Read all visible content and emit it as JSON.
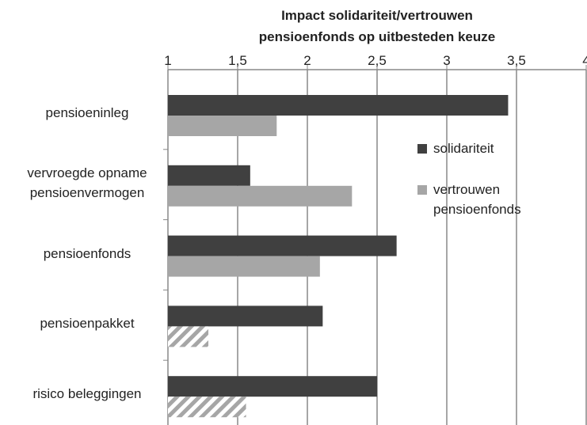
{
  "chart_data": {
    "type": "bar",
    "orientation": "horizontal",
    "title": "Impact solidariteit/vertrouwen\npensioenfonds  op uitbesteden keuze",
    "categories": [
      "pensioeninleg",
      "vervroegde opname\npensioenvermogen",
      "pensioenfonds",
      "pensioenpakket",
      "risico beleggingen"
    ],
    "series": [
      {
        "name": "solidariteit",
        "color": "#404040",
        "values": [
          3.44,
          1.59,
          2.64,
          2.11,
          2.5
        ]
      },
      {
        "name": "vertrouwen\npensioenfonds",
        "color": "#a6a6a6",
        "values": [
          1.78,
          2.32,
          2.09,
          1.29,
          1.56
        ],
        "hatched": [
          false,
          false,
          false,
          true,
          true
        ]
      }
    ],
    "xlim": [
      1,
      4
    ],
    "xticks": [
      1,
      {
        "value": 1.5,
        "label": "1,5"
      },
      2,
      {
        "value": 2.5,
        "label": "2,5"
      },
      3,
      {
        "value": 3.5,
        "label": "3,5"
      },
      4
    ],
    "grid": true,
    "legend": "right"
  }
}
